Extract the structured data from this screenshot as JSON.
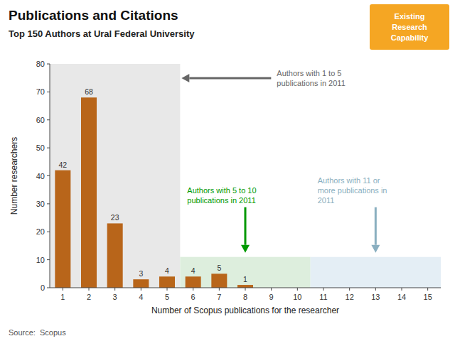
{
  "chart_data": {
    "type": "bar",
    "title": "Publications and Citations",
    "subtitle": "Top 150 Authors at Ural Federal University",
    "x_label": "Number of Scopus publications for the researcher",
    "y_label": "Number researchers",
    "source": "Source:  Scopus",
    "categories": [
      1,
      2,
      3,
      4,
      5,
      6,
      7,
      8,
      9,
      10,
      11,
      12,
      13,
      14,
      15
    ],
    "values": [
      42,
      68,
      23,
      3,
      4,
      4,
      5,
      1,
      0,
      0,
      0,
      0,
      0,
      0,
      0
    ],
    "color": "#B8651A",
    "ylim": [
      0,
      80
    ],
    "yticks": [
      0,
      10,
      20,
      30,
      40,
      50,
      60,
      70,
      80
    ],
    "grid": false,
    "data_labels": true,
    "regions": [
      {
        "from": 1,
        "to": 5,
        "height": 80,
        "color": "#E8E8E8",
        "text": "Authors with 1 to 5\npublications in 2011",
        "text_color": "#666666"
      },
      {
        "from": 6,
        "to": 10,
        "height": 11,
        "color": "#DDEEDD",
        "text": "Authors with  5 to 10\npublications in 2011",
        "text_color": "#009900"
      },
      {
        "from": 11,
        "to": 15,
        "height": 11,
        "color": "#E4EEF5",
        "text": "Authors with 11 or\nmore publications in\n2011",
        "text_color": "#8AAFC0"
      }
    ],
    "badge": {
      "text": "Existing\nResearch\nCapability",
      "color": "#F5A623",
      "text_color": "#FFFFFF"
    }
  }
}
